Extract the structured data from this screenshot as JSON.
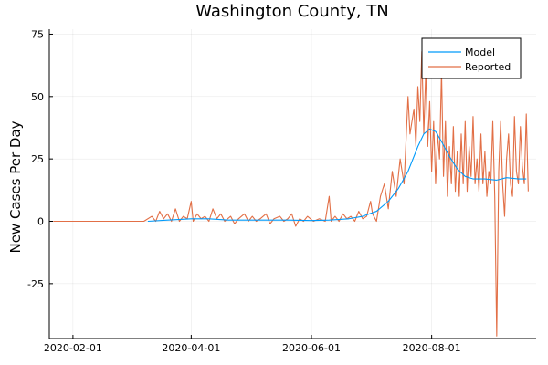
{
  "chart_data": {
    "type": "line",
    "title": "Washington County, TN",
    "xlabel": "",
    "ylabel": "New Cases Per Day",
    "x_axis_type": "date",
    "xlim": [
      "2020-01-20",
      "2020-09-23"
    ],
    "ylim": [
      -47,
      77
    ],
    "x_ticks": [
      {
        "value": "2020-02-01",
        "label": "2020-02-01"
      },
      {
        "value": "2020-04-01",
        "label": "2020-04-01"
      },
      {
        "value": "2020-06-01",
        "label": "2020-06-01"
      },
      {
        "value": "2020-08-01",
        "label": "2020-08-01"
      }
    ],
    "y_ticks": [
      {
        "value": -25,
        "label": "-25"
      },
      {
        "value": 0,
        "label": "0"
      },
      {
        "value": 25,
        "label": "25"
      },
      {
        "value": 50,
        "label": "50"
      },
      {
        "value": 75,
        "label": "75"
      }
    ],
    "grid": true,
    "legend_position": "top-right",
    "series": [
      {
        "name": "Model",
        "color": "#009AFA",
        "points": [
          [
            "2020-03-10",
            0
          ],
          [
            "2020-03-20",
            0.5
          ],
          [
            "2020-04-01",
            1
          ],
          [
            "2020-04-10",
            1
          ],
          [
            "2020-04-20",
            0.5
          ],
          [
            "2020-05-01",
            0.5
          ],
          [
            "2020-05-10",
            0.5
          ],
          [
            "2020-05-20",
            0.5
          ],
          [
            "2020-06-01",
            0.3
          ],
          [
            "2020-06-10",
            0.5
          ],
          [
            "2020-06-20",
            1
          ],
          [
            "2020-06-27",
            2
          ],
          [
            "2020-07-04",
            4
          ],
          [
            "2020-07-10",
            8
          ],
          [
            "2020-07-15",
            13
          ],
          [
            "2020-07-20",
            20
          ],
          [
            "2020-07-25",
            30
          ],
          [
            "2020-07-28",
            35
          ],
          [
            "2020-07-31",
            37
          ],
          [
            "2020-08-03",
            36
          ],
          [
            "2020-08-06",
            32
          ],
          [
            "2020-08-10",
            26
          ],
          [
            "2020-08-14",
            21
          ],
          [
            "2020-08-18",
            18
          ],
          [
            "2020-08-22",
            17
          ],
          [
            "2020-08-28",
            17
          ],
          [
            "2020-09-03",
            16.5
          ],
          [
            "2020-09-08",
            17.5
          ],
          [
            "2020-09-14",
            17
          ],
          [
            "2020-09-18",
            17
          ]
        ]
      },
      {
        "name": "Reported",
        "color": "#E26F46",
        "points": [
          [
            "2020-01-22",
            0
          ],
          [
            "2020-03-08",
            0
          ],
          [
            "2020-03-12",
            2
          ],
          [
            "2020-03-14",
            0
          ],
          [
            "2020-03-16",
            4
          ],
          [
            "2020-03-18",
            1
          ],
          [
            "2020-03-20",
            3
          ],
          [
            "2020-03-22",
            0
          ],
          [
            "2020-03-24",
            5
          ],
          [
            "2020-03-26",
            0
          ],
          [
            "2020-03-28",
            2
          ],
          [
            "2020-03-30",
            1
          ],
          [
            "2020-04-01",
            8
          ],
          [
            "2020-04-02",
            0
          ],
          [
            "2020-04-04",
            3
          ],
          [
            "2020-04-06",
            1
          ],
          [
            "2020-04-08",
            2
          ],
          [
            "2020-04-10",
            0
          ],
          [
            "2020-04-12",
            5
          ],
          [
            "2020-04-14",
            1
          ],
          [
            "2020-04-16",
            3
          ],
          [
            "2020-04-18",
            0
          ],
          [
            "2020-04-21",
            2
          ],
          [
            "2020-04-23",
            -1
          ],
          [
            "2020-04-25",
            1
          ],
          [
            "2020-04-28",
            3
          ],
          [
            "2020-04-30",
            0
          ],
          [
            "2020-05-02",
            2
          ],
          [
            "2020-05-04",
            0
          ],
          [
            "2020-05-06",
            1
          ],
          [
            "2020-05-09",
            3
          ],
          [
            "2020-05-11",
            -1
          ],
          [
            "2020-05-13",
            1
          ],
          [
            "2020-05-16",
            2
          ],
          [
            "2020-05-18",
            0
          ],
          [
            "2020-05-20",
            1
          ],
          [
            "2020-05-22",
            3
          ],
          [
            "2020-05-24",
            -2
          ],
          [
            "2020-05-26",
            1
          ],
          [
            "2020-05-28",
            0
          ],
          [
            "2020-05-30",
            2
          ],
          [
            "2020-06-02",
            0
          ],
          [
            "2020-06-05",
            1
          ],
          [
            "2020-06-08",
            0
          ],
          [
            "2020-06-10",
            10
          ],
          [
            "2020-06-11",
            0
          ],
          [
            "2020-06-13",
            2
          ],
          [
            "2020-06-15",
            0
          ],
          [
            "2020-06-17",
            3
          ],
          [
            "2020-06-19",
            1
          ],
          [
            "2020-06-21",
            2
          ],
          [
            "2020-06-23",
            0
          ],
          [
            "2020-06-25",
            4
          ],
          [
            "2020-06-27",
            1
          ],
          [
            "2020-06-29",
            2
          ],
          [
            "2020-07-01",
            8
          ],
          [
            "2020-07-02",
            3
          ],
          [
            "2020-07-04",
            0
          ],
          [
            "2020-07-06",
            10
          ],
          [
            "2020-07-08",
            15
          ],
          [
            "2020-07-10",
            5
          ],
          [
            "2020-07-12",
            20
          ],
          [
            "2020-07-14",
            10
          ],
          [
            "2020-07-16",
            25
          ],
          [
            "2020-07-18",
            15
          ],
          [
            "2020-07-20",
            50
          ],
          [
            "2020-07-21",
            35
          ],
          [
            "2020-07-23",
            45
          ],
          [
            "2020-07-24",
            30
          ],
          [
            "2020-07-25",
            54
          ],
          [
            "2020-07-26",
            40
          ],
          [
            "2020-07-27",
            68
          ],
          [
            "2020-07-28",
            35
          ],
          [
            "2020-07-29",
            60
          ],
          [
            "2020-07-30",
            30
          ],
          [
            "2020-07-31",
            48
          ],
          [
            "2020-08-01",
            20
          ],
          [
            "2020-08-02",
            40
          ],
          [
            "2020-08-03",
            15
          ],
          [
            "2020-08-04",
            35
          ],
          [
            "2020-08-05",
            25
          ],
          [
            "2020-08-06",
            60
          ],
          [
            "2020-08-07",
            18
          ],
          [
            "2020-08-08",
            40
          ],
          [
            "2020-08-09",
            10
          ],
          [
            "2020-08-10",
            30
          ],
          [
            "2020-08-11",
            15
          ],
          [
            "2020-08-12",
            38
          ],
          [
            "2020-08-13",
            12
          ],
          [
            "2020-08-14",
            28
          ],
          [
            "2020-08-15",
            10
          ],
          [
            "2020-08-16",
            35
          ],
          [
            "2020-08-17",
            15
          ],
          [
            "2020-08-18",
            40
          ],
          [
            "2020-08-19",
            12
          ],
          [
            "2020-08-20",
            30
          ],
          [
            "2020-08-21",
            18
          ],
          [
            "2020-08-22",
            42
          ],
          [
            "2020-08-23",
            15
          ],
          [
            "2020-08-24",
            25
          ],
          [
            "2020-08-25",
            12
          ],
          [
            "2020-08-26",
            35
          ],
          [
            "2020-08-27",
            15
          ],
          [
            "2020-08-28",
            28
          ],
          [
            "2020-08-29",
            10
          ],
          [
            "2020-08-30",
            20
          ],
          [
            "2020-08-31",
            15
          ],
          [
            "2020-09-01",
            40
          ],
          [
            "2020-09-02",
            10
          ],
          [
            "2020-09-03",
            -46
          ],
          [
            "2020-09-04",
            20
          ],
          [
            "2020-09-05",
            40
          ],
          [
            "2020-09-06",
            15
          ],
          [
            "2020-09-07",
            2
          ],
          [
            "2020-09-08",
            25
          ],
          [
            "2020-09-09",
            35
          ],
          [
            "2020-09-10",
            15
          ],
          [
            "2020-09-11",
            10
          ],
          [
            "2020-09-12",
            42
          ],
          [
            "2020-09-13",
            20
          ],
          [
            "2020-09-14",
            15
          ],
          [
            "2020-09-15",
            38
          ],
          [
            "2020-09-16",
            22
          ],
          [
            "2020-09-17",
            15
          ],
          [
            "2020-09-18",
            43
          ],
          [
            "2020-09-19",
            12
          ]
        ]
      }
    ]
  }
}
